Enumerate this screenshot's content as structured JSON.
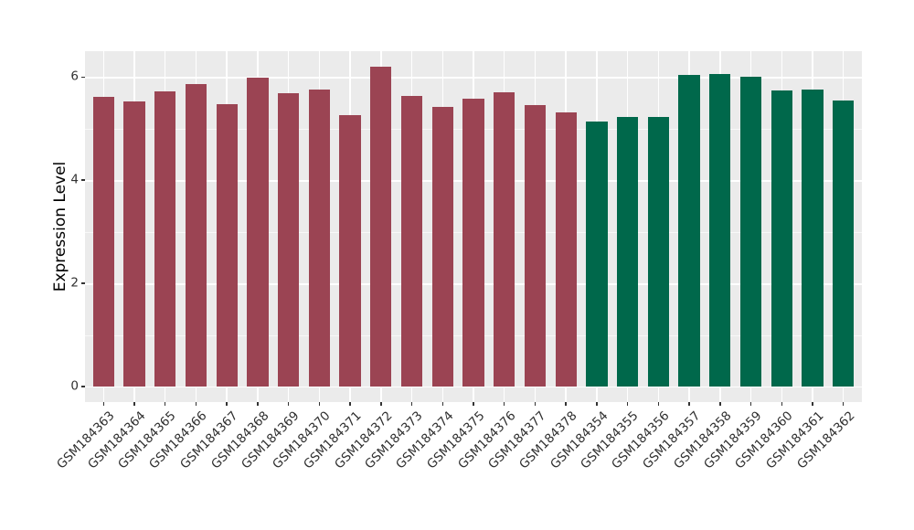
{
  "figure": {
    "background": "#FFFFFF",
    "panel_background": "#EBEBEB",
    "grid_color": "#FFFFFF",
    "tick_color": "#333333",
    "text_color": "#303030"
  },
  "chart_data": {
    "type": "bar",
    "title": "",
    "xlabel": "",
    "ylabel": "Expression Level",
    "ylim": [
      -0.3,
      6.5
    ],
    "yticks": [
      0,
      2,
      4,
      6
    ],
    "yticks_minor": [
      1,
      3,
      5
    ],
    "grid": "white major+minor horizontal lines and major vertical lines on gray panel, drawn under bars",
    "legend_position": "none",
    "categories": [
      "GSM184363",
      "GSM184364",
      "GSM184365",
      "GSM184366",
      "GSM184367",
      "GSM184368",
      "GSM184369",
      "GSM184370",
      "GSM184371",
      "GSM184372",
      "GSM184373",
      "GSM184374",
      "GSM184375",
      "GSM184376",
      "GSM184377",
      "GSM184378",
      "GSM184354",
      "GSM184355",
      "GSM184356",
      "GSM184357",
      "GSM184358",
      "GSM184359",
      "GSM184360",
      "GSM184361",
      "GSM184362"
    ],
    "series": [
      {
        "name": "maroon-group",
        "color": "#9B4453",
        "categories": [
          "GSM184363",
          "GSM184364",
          "GSM184365",
          "GSM184366",
          "GSM184367",
          "GSM184368",
          "GSM184369",
          "GSM184370",
          "GSM184371",
          "GSM184372",
          "GSM184373",
          "GSM184374",
          "GSM184375",
          "GSM184376",
          "GSM184377",
          "GSM184378"
        ],
        "values": [
          5.61,
          5.52,
          5.72,
          5.86,
          5.47,
          5.99,
          5.69,
          5.76,
          5.26,
          6.2,
          5.63,
          5.42,
          5.58,
          5.71,
          5.45,
          5.32
        ]
      },
      {
        "name": "green-group",
        "color": "#00684B",
        "categories": [
          "GSM184354",
          "GSM184355",
          "GSM184356",
          "GSM184357",
          "GSM184358",
          "GSM184359",
          "GSM184360",
          "GSM184361",
          "GSM184362"
        ],
        "values": [
          5.14,
          5.22,
          5.23,
          6.04,
          6.05,
          6.0,
          5.73,
          5.76,
          5.55
        ]
      }
    ]
  }
}
